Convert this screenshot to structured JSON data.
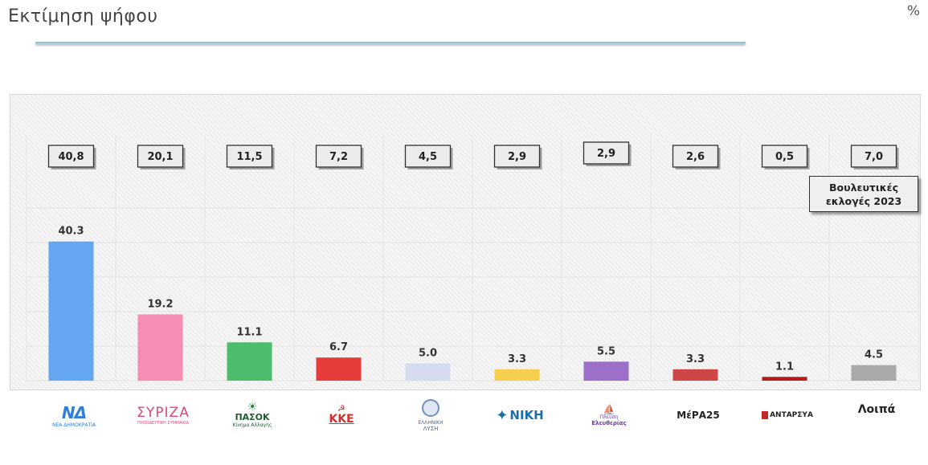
{
  "header": {
    "title": "Εκτίμηση ψήφου",
    "unit": "%"
  },
  "note": {
    "line1": "Βουλευτικές",
    "line2": "εκλογές 2023"
  },
  "colors": {
    "nd": "#64a6f0",
    "syriza": "#f58db4",
    "pasok": "#4dbd6d",
    "kke": "#e83c3c",
    "elliniki": "#d5dcf0",
    "niki": "#f6cf4c",
    "plefsi": "#9c6fc8",
    "mera25": "#cf4646",
    "antarsya": "#b71c1c",
    "other": "#a9a9a9"
  },
  "chart_data": {
    "type": "bar",
    "categories": [
      "ΝΔ",
      "ΣΥΡΙΖΑ",
      "ΠΑΣΟΚ",
      "ΚΚΕ",
      "Ελληνική Λύση",
      "ΝΙΚΗ",
      "Πλεύση Ελευθερίας",
      "ΜέΡΑ25",
      "ΑΝΤΑΡΣΥΑ",
      "Λοιπά"
    ],
    "series": [
      {
        "name": "",
        "values": [
          40.3,
          19.2,
          11.1,
          6.7,
          5.0,
          3.3,
          5.5,
          3.3,
          1.1,
          4.5
        ],
        "labels": [
          "40.3",
          "19.2",
          "11.1",
          "6.7",
          "5.0",
          "3.3",
          "5.5",
          "3.3",
          "1.1",
          "4.5"
        ]
      },
      {
        "name": "Βουλευτικές εκλογές 2023",
        "values": [
          40.8,
          20.1,
          11.5,
          7.2,
          4.5,
          2.9,
          2.9,
          2.6,
          0.5,
          7.0
        ],
        "labels": [
          "40,8",
          "20,1",
          "11,5",
          "7,2",
          "4,5",
          "2,9",
          "2,9",
          "2,6",
          "0,5",
          "7,0"
        ]
      }
    ],
    "ylim": [
      0,
      50
    ],
    "grid": true
  },
  "logos": {
    "nd": {
      "mark": "ΝΔ",
      "sub": "ΝΕΑ ΔΗΜΟΚΡΑΤΙΑ"
    },
    "syriza": {
      "mark": "ΣΥΡΙΖΑ",
      "sub": "ΠΡΟΟΔΕΥΤΙΚΗ ΣΥΜΜΑΧΙΑ"
    },
    "pasok": {
      "mark": "ΠΑΣΟΚ",
      "sub": "Κίνημα Αλλαγής"
    },
    "kke": {
      "mark": "ΚΚΕ"
    },
    "elliniki": {
      "mark": "ΕΛΛΗΝΙΚΗ",
      "sub": "ΛΥΣΗ"
    },
    "niki": {
      "mark": "ΝΙΚΗ"
    },
    "plefsi": {
      "mark": "Πλεύση",
      "sub": "Ελευθερίας"
    },
    "mera25": {
      "mark": "ΜέΡΑ25"
    },
    "antarsya": {
      "mark": "ΑΝΤΑΡΣΥΑ"
    },
    "other": {
      "mark": "Λοιπά"
    }
  }
}
